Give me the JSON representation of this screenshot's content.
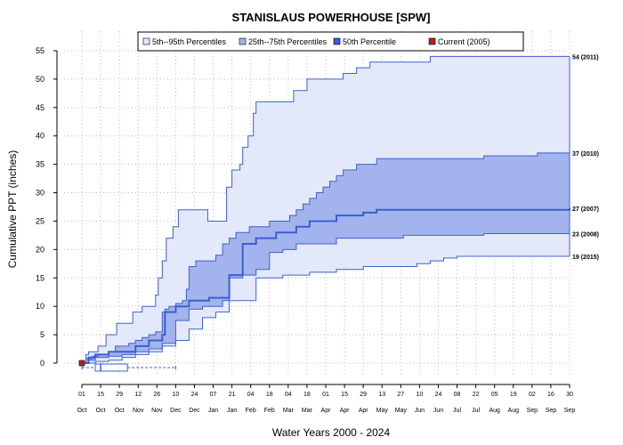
{
  "chart_data": {
    "type": "area",
    "title": "STANISLAUS POWERHOUSE [SPW]",
    "xlabel": "Water Years 2000 - 2024",
    "ylabel": "Cumulative PPT (inches)",
    "ylim": [
      0,
      55
    ],
    "yticks": [
      "0",
      "5",
      "10",
      "15",
      "20",
      "25",
      "30",
      "35",
      "40",
      "45",
      "50",
      "55"
    ],
    "grid": true,
    "legend_position": "top",
    "legend": [
      {
        "label": "5th--95th Percentiles",
        "key": "p5_95"
      },
      {
        "label": "25th--75th Percentiles",
        "key": "p25_75"
      },
      {
        "label": "50th Percentile",
        "key": "p50"
      },
      {
        "label": "Current (2005)",
        "key": "current"
      }
    ],
    "colors": {
      "band_outer_fill": "#e3e8fb",
      "band_inner_fill": "#a3b3ee",
      "band_edge": "#4060cc",
      "median_line": "#3a5fcd",
      "current_marker": "#b22222",
      "grid": "#bbbbbb"
    },
    "x_ticks": [
      {
        "day": "01",
        "month": "Oct"
      },
      {
        "day": "15",
        "month": "Oct"
      },
      {
        "day": "29",
        "month": "Oct"
      },
      {
        "day": "12",
        "month": "Nov"
      },
      {
        "day": "26",
        "month": "Nov"
      },
      {
        "day": "10",
        "month": "Dec"
      },
      {
        "day": "24",
        "month": "Dec"
      },
      {
        "day": "07",
        "month": "Jan"
      },
      {
        "day": "21",
        "month": "Jan"
      },
      {
        "day": "04",
        "month": "Feb"
      },
      {
        "day": "18",
        "month": "Feb"
      },
      {
        "day": "04",
        "month": "Mar"
      },
      {
        "day": "18",
        "month": "Mar"
      },
      {
        "day": "01",
        "month": "Apr"
      },
      {
        "day": "15",
        "month": "Apr"
      },
      {
        "day": "29",
        "month": "Apr"
      },
      {
        "day": "13",
        "month": "May"
      },
      {
        "day": "27",
        "month": "May"
      },
      {
        "day": "10",
        "month": "Jun"
      },
      {
        "day": "24",
        "month": "Jun"
      },
      {
        "day": "08",
        "month": "Jul"
      },
      {
        "day": "22",
        "month": "Jul"
      },
      {
        "day": "05",
        "month": "Aug"
      },
      {
        "day": "19",
        "month": "Aug"
      },
      {
        "day": "02",
        "month": "Sep"
      },
      {
        "day": "16",
        "month": "Sep"
      },
      {
        "day": "30",
        "month": "Sep"
      }
    ],
    "series": {
      "p95": {
        "x": [
          0,
          3,
          5,
          12,
          18,
          22,
          26,
          35,
          38,
          45,
          50,
          55,
          57,
          60,
          63,
          68,
          72,
          75,
          78,
          80,
          84,
          88,
          90,
          94,
          98,
          105,
          108,
          110,
          112,
          118,
          120,
          124,
          128,
          130,
          135,
          140,
          145,
          150,
          152,
          158,
          160,
          162,
          168,
          172,
          175,
          180,
          185,
          190,
          195,
          200,
          205,
          210,
          215,
          220,
          230,
          240,
          245,
          250,
          255,
          260,
          265,
          270,
          275,
          280,
          300,
          320,
          340,
          364
        ],
        "y": [
          0,
          1.5,
          2,
          3,
          5,
          5,
          7,
          7,
          9,
          10,
          10,
          12,
          15,
          18,
          22,
          24,
          27,
          27,
          27,
          27,
          27,
          27,
          27,
          25,
          25,
          25,
          31,
          31,
          34,
          35,
          38,
          40,
          44,
          46,
          46,
          46,
          46,
          46,
          46,
          48,
          48,
          48,
          50,
          50,
          50,
          50,
          50,
          50,
          51,
          51,
          52,
          52,
          53,
          53,
          53,
          53,
          53,
          53,
          53,
          54,
          54,
          54,
          54,
          54,
          54,
          54,
          54,
          54
        ]
      },
      "p75": {
        "x": [
          0,
          3,
          8,
          12,
          20,
          25,
          35,
          40,
          45,
          50,
          55,
          60,
          62,
          65,
          70,
          75,
          78,
          80,
          85,
          90,
          95,
          100,
          105,
          110,
          115,
          120,
          125,
          130,
          140,
          150,
          155,
          160,
          165,
          170,
          175,
          180,
          185,
          190,
          195,
          200,
          205,
          210,
          220,
          230,
          240,
          250,
          260,
          270,
          280,
          290,
          300,
          320,
          340,
          364
        ],
        "y": [
          0,
          0.8,
          1.2,
          1.5,
          2,
          3,
          3.5,
          4,
          4.5,
          5,
          5.5,
          9,
          9.5,
          10,
          10.5,
          11,
          13,
          17,
          18,
          18,
          18,
          19,
          21,
          22,
          23,
          23,
          24,
          24,
          25,
          25,
          26,
          27,
          28,
          29,
          30,
          31,
          32,
          33,
          34,
          34,
          35,
          35,
          36,
          36,
          36,
          36,
          36,
          36,
          36,
          36,
          36.5,
          36.5,
          37,
          37
        ]
      },
      "p50": {
        "x": [
          0,
          5,
          10,
          20,
          30,
          40,
          50,
          60,
          62,
          70,
          80,
          90,
          95,
          100,
          105,
          110,
          120,
          130,
          140,
          145,
          150,
          160,
          170,
          180,
          190,
          200,
          210,
          220,
          230,
          240,
          250,
          260,
          280,
          300,
          320,
          340,
          364
        ],
        "y": [
          0,
          1,
          1.5,
          2,
          2,
          3,
          4,
          5,
          9,
          10,
          11,
          11,
          11.5,
          11.5,
          11.5,
          15.5,
          21,
          22,
          22,
          23,
          23,
          24,
          25,
          25,
          26,
          26,
          26.5,
          27,
          27,
          27,
          27,
          27,
          27,
          27,
          27,
          27,
          27.3
        ]
      },
      "p25": {
        "x": [
          0,
          5,
          10,
          20,
          30,
          40,
          50,
          60,
          70,
          80,
          90,
          100,
          105,
          110,
          120,
          130,
          140,
          150,
          160,
          170,
          180,
          190,
          200,
          210,
          220,
          240,
          260,
          280,
          300,
          320,
          340,
          364
        ],
        "y": [
          0,
          0.5,
          1,
          1.2,
          1.5,
          2,
          2.5,
          3.5,
          7.5,
          9.5,
          10,
          10,
          11,
          15,
          15.5,
          16.5,
          19.5,
          20,
          21,
          21,
          21,
          22,
          22,
          22,
          22,
          22.5,
          22.5,
          22.5,
          22.8,
          22.8,
          22.8,
          22.8
        ]
      },
      "p5": {
        "x": [
          0,
          10,
          20,
          30,
          40,
          50,
          60,
          70,
          80,
          90,
          100,
          110,
          130,
          150,
          170,
          180,
          190,
          200,
          210,
          220,
          230,
          240,
          250,
          260,
          270,
          280,
          300,
          320,
          340,
          364
        ],
        "y": [
          0,
          0.3,
          0.5,
          1,
          1.5,
          2,
          3,
          4,
          6,
          8,
          9,
          11,
          15,
          15.5,
          16,
          16,
          16.5,
          16.5,
          17,
          17,
          17,
          17,
          17.5,
          18,
          18.5,
          18.8,
          18.8,
          18.8,
          18.8,
          18.8
        ]
      },
      "current": {
        "x": [
          0
        ],
        "y": [
          0
        ]
      }
    },
    "end_labels": [
      {
        "text": "54 (2011)",
        "value": 54
      },
      {
        "text": "37 (2010)",
        "value": 37
      },
      {
        "text": "27 (2007)",
        "value": 27.3
      },
      {
        "text": "23 (2008)",
        "value": 22.8
      },
      {
        "text": "19 (2015)",
        "value": 18.8
      }
    ],
    "boxplot": {
      "min": 0,
      "q1": 10,
      "median": 14,
      "q3": 34,
      "max": 70
    }
  }
}
